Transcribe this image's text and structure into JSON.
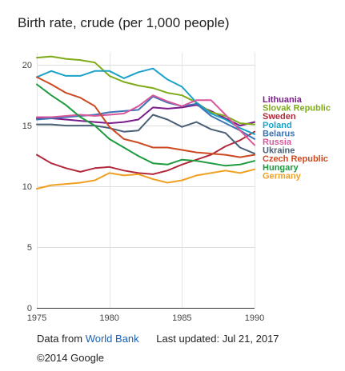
{
  "title": "Birth rate, crude (per 1,000 people)",
  "footer": {
    "source_prefix": "Data from",
    "source_link": "World Bank",
    "updated": "Last updated: Jul 21, 2017",
    "copyright": "©2014 Google"
  },
  "chart_data": {
    "type": "line",
    "title": "Birth rate, crude (per 1,000 people)",
    "xlim": [
      1975,
      1990
    ],
    "ylim": [
      0,
      21
    ],
    "x_ticks": [
      1975,
      1980,
      1985,
      1990
    ],
    "y_ticks": [
      0,
      5,
      10,
      15,
      20
    ],
    "grid": "horizontal",
    "legend_position": "right",
    "x": [
      1975,
      1976,
      1977,
      1978,
      1979,
      1980,
      1981,
      1982,
      1983,
      1984,
      1985,
      1986,
      1987,
      1988,
      1989,
      1990
    ],
    "series": [
      {
        "name": "Lithuania",
        "color": "#7b1c8c",
        "values": [
          15.6,
          15.6,
          15.5,
          15.4,
          15.3,
          15.2,
          15.3,
          15.5,
          16.5,
          16.4,
          16.5,
          16.7,
          16.2,
          15.6,
          15.0,
          15.3
        ]
      },
      {
        "name": "Slovak Republic",
        "color": "#7eab1a",
        "values": [
          20.6,
          20.7,
          20.5,
          20.4,
          20.2,
          19.1,
          18.6,
          18.3,
          18.1,
          17.7,
          17.5,
          16.9,
          16.1,
          15.8,
          15.2,
          15.1
        ]
      },
      {
        "name": "Sweden",
        "color": "#b22a3c",
        "values": [
          12.6,
          11.9,
          11.5,
          11.2,
          11.5,
          11.6,
          11.3,
          11.1,
          11.0,
          11.3,
          11.8,
          12.2,
          12.6,
          13.3,
          13.8,
          14.5
        ]
      },
      {
        "name": "Poland",
        "color": "#1aa2c8",
        "values": [
          19.0,
          19.5,
          19.1,
          19.1,
          19.5,
          19.5,
          18.9,
          19.4,
          19.7,
          18.8,
          18.2,
          16.9,
          16.0,
          15.5,
          14.8,
          14.3
        ]
      },
      {
        "name": "Belarus",
        "color": "#3d74b5",
        "values": [
          15.5,
          15.6,
          15.7,
          15.8,
          15.9,
          16.1,
          16.2,
          16.3,
          17.4,
          16.9,
          16.6,
          16.8,
          15.8,
          15.2,
          14.6,
          13.9
        ]
      },
      {
        "name": "Russia",
        "color": "#d9579b",
        "values": [
          15.7,
          15.7,
          15.8,
          15.9,
          15.8,
          15.9,
          16.0,
          16.6,
          17.5,
          17.0,
          16.6,
          17.1,
          17.1,
          15.9,
          14.6,
          13.4
        ]
      },
      {
        "name": "Ukraine",
        "color": "#4a6076",
        "values": [
          15.1,
          15.1,
          15.0,
          15.0,
          15.0,
          14.8,
          14.5,
          14.6,
          15.9,
          15.5,
          14.9,
          15.3,
          14.7,
          14.4,
          13.2,
          12.7
        ]
      },
      {
        "name": "Czech Republic",
        "color": "#cc4a22",
        "values": [
          19.0,
          18.4,
          17.7,
          17.3,
          16.6,
          14.9,
          13.9,
          13.6,
          13.2,
          13.2,
          13.0,
          12.8,
          12.7,
          12.6,
          12.4,
          12.6
        ]
      },
      {
        "name": "Hungary",
        "color": "#1e9a3f",
        "values": [
          18.4,
          17.5,
          16.7,
          15.7,
          15.0,
          13.9,
          13.2,
          12.5,
          11.9,
          11.8,
          12.2,
          12.1,
          11.9,
          11.7,
          11.8,
          12.1
        ]
      },
      {
        "name": "Germany",
        "color": "#f0a022",
        "values": [
          9.8,
          10.1,
          10.2,
          10.3,
          10.5,
          11.1,
          10.9,
          11.0,
          10.6,
          10.3,
          10.5,
          10.9,
          11.1,
          11.3,
          11.1,
          11.4
        ]
      }
    ]
  }
}
